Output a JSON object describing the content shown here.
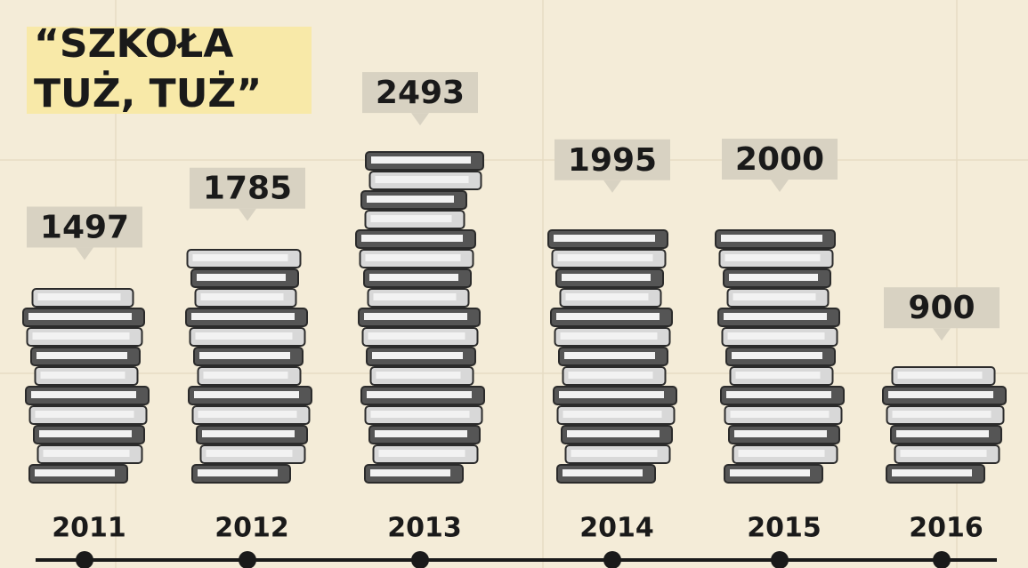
{
  "chart_data": {
    "type": "book-stacks",
    "title": "“SZKOŁA TUŻ, TUŻ”",
    "categories": [
      "2011",
      "2012",
      "2013",
      "2014",
      "2015",
      "2016"
    ],
    "values": [
      1497,
      1785,
      2493,
      1995,
      2000,
      900
    ],
    "color": "#2b2b2b"
  }
}
